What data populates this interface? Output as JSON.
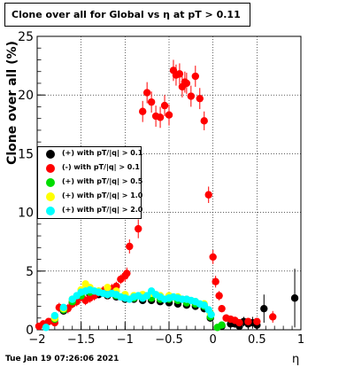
{
  "chart_data": {
    "type": "scatter",
    "title": "Clone  over all for Global vs   η at pT > 0.11",
    "xlabel": "η",
    "ylabel": "Clone  over all (%)",
    "xlim": [
      -2,
      1
    ],
    "ylim": [
      0,
      25
    ],
    "xticks": [
      -2,
      -1.5,
      -1,
      -0.5,
      0,
      0.5,
      1
    ],
    "xtick_labels": [
      "−2",
      "−1.5",
      "−1",
      "−0.5",
      "0",
      "0.5",
      "1"
    ],
    "yticks": [
      0,
      5,
      10,
      15,
      20,
      25
    ],
    "ytick_labels": [
      "0",
      "5",
      "10",
      "15",
      "20",
      "25"
    ],
    "grid": true,
    "legend_position": "middle-left",
    "series": [
      {
        "name": "(+) with pT/|q| > 0.1",
        "color": "#000000",
        "x": [
          -1.8,
          -1.7,
          -1.6,
          -1.5,
          -1.4,
          -1.3,
          -1.2,
          -1.1,
          -1.0,
          -0.9,
          -0.8,
          -0.7,
          -0.6,
          -0.5,
          -0.4,
          -0.3,
          -0.2,
          -0.1,
          -0.03,
          0.1,
          0.2,
          0.25,
          0.3,
          0.35,
          0.4,
          0.45,
          0.5,
          0.58,
          0.93
        ],
        "y": [
          1.0,
          1.6,
          2.3,
          2.8,
          3.0,
          3.0,
          2.9,
          2.8,
          2.6,
          2.6,
          2.5,
          2.5,
          2.4,
          2.3,
          2.2,
          2.1,
          2.0,
          1.8,
          1.0,
          0.3,
          0.5,
          0.5,
          0.3,
          0.7,
          0.5,
          0.6,
          0.4,
          1.8,
          2.7
        ],
        "err": [
          0.2,
          0.2,
          0.2,
          0.2,
          0.2,
          0.2,
          0.2,
          0.2,
          0.2,
          0.2,
          0.2,
          0.2,
          0.2,
          0.2,
          0.2,
          0.2,
          0.2,
          0.3,
          0.3,
          0.2,
          0.3,
          0.3,
          0.3,
          0.4,
          0.4,
          0.5,
          0.4,
          1.2,
          2.5
        ]
      },
      {
        "name": "(-) with pT/|q| > 0.1",
        "color": "#ff0000",
        "x": [
          -1.98,
          -1.93,
          -1.87,
          -1.8,
          -1.75,
          -1.65,
          -1.6,
          -1.55,
          -1.5,
          -1.45,
          -1.4,
          -1.35,
          -1.3,
          -1.25,
          -1.2,
          -1.15,
          -1.1,
          -1.05,
          -1.0,
          -0.98,
          -0.95,
          -0.85,
          -0.8,
          -0.75,
          -0.7,
          -0.65,
          -0.6,
          -0.55,
          -0.5,
          -0.45,
          -0.42,
          -0.38,
          -0.35,
          -0.32,
          -0.3,
          -0.25,
          -0.2,
          -0.15,
          -0.1,
          -0.05,
          0.0,
          0.03,
          0.07,
          0.1,
          0.15,
          0.2,
          0.25,
          0.3,
          0.4,
          0.5,
          0.68
        ],
        "y": [
          0.3,
          0.5,
          0.7,
          0.6,
          1.9,
          1.8,
          2.2,
          2.4,
          2.8,
          2.5,
          2.7,
          2.9,
          3.2,
          3.3,
          3.0,
          3.5,
          3.7,
          4.3,
          4.6,
          4.8,
          7.1,
          8.6,
          18.6,
          20.2,
          19.4,
          18.2,
          18.1,
          19.1,
          18.3,
          22.1,
          21.7,
          21.8,
          20.7,
          21.1,
          21.0,
          19.9,
          21.6,
          19.7,
          17.8,
          11.5,
          6.2,
          4.1,
          2.9,
          1.8,
          1.0,
          0.9,
          0.8,
          0.6,
          0.7,
          0.7,
          1.1
        ],
        "err": [
          0.3,
          0.3,
          0.3,
          0.3,
          0.4,
          0.4,
          0.4,
          0.4,
          0.4,
          0.4,
          0.4,
          0.4,
          0.4,
          0.4,
          0.4,
          0.4,
          0.4,
          0.4,
          0.5,
          0.5,
          0.6,
          0.8,
          0.9,
          0.9,
          0.9,
          0.9,
          0.9,
          0.9,
          0.9,
          0.9,
          0.9,
          0.9,
          0.9,
          0.9,
          0.9,
          0.9,
          0.9,
          0.9,
          0.8,
          0.7,
          0.6,
          0.5,
          0.4,
          0.3,
          0.3,
          0.3,
          0.3,
          0.3,
          0.3,
          0.3,
          0.5
        ]
      },
      {
        "name": "(+) with pT/|q| > 0.5",
        "color": "#00dd00",
        "x": [
          -1.8,
          -1.7,
          -1.6,
          -1.5,
          -1.4,
          -1.3,
          -1.2,
          -1.1,
          -1.0,
          -0.9,
          -0.8,
          -0.7,
          -0.6,
          -0.5,
          -0.4,
          -0.3,
          -0.2,
          -0.1,
          -0.03,
          0.05,
          0.1
        ],
        "y": [
          0.9,
          1.7,
          2.4,
          2.9,
          3.2,
          3.2,
          3.0,
          2.9,
          2.7,
          2.7,
          2.7,
          2.7,
          2.6,
          2.6,
          2.5,
          2.3,
          2.2,
          2.0,
          1.1,
          0.2,
          0.4
        ],
        "err": [
          0.2,
          0.2,
          0.2,
          0.2,
          0.2,
          0.2,
          0.2,
          0.2,
          0.2,
          0.2,
          0.2,
          0.2,
          0.2,
          0.2,
          0.2,
          0.2,
          0.2,
          0.2,
          0.2,
          0.2,
          0.2
        ]
      },
      {
        "name": "(+) with pT/|q| > 1.0",
        "color": "#ffff00",
        "x": [
          -1.8,
          -1.7,
          -1.6,
          -1.5,
          -1.45,
          -1.4,
          -1.3,
          -1.2,
          -1.1,
          -1.0,
          -0.9,
          -0.8,
          -0.7,
          -0.6,
          -0.5,
          -0.4,
          -0.3,
          -0.2,
          -0.1,
          -0.03
        ],
        "y": [
          1.0,
          1.8,
          2.6,
          3.4,
          3.9,
          3.6,
          3.3,
          3.6,
          3.3,
          3.0,
          2.9,
          3.0,
          3.1,
          2.9,
          2.9,
          2.8,
          2.6,
          2.4,
          2.2,
          1.4
        ],
        "err": [
          0.2,
          0.2,
          0.2,
          0.2,
          0.2,
          0.2,
          0.2,
          0.2,
          0.2,
          0.2,
          0.2,
          0.2,
          0.2,
          0.2,
          0.2,
          0.2,
          0.2,
          0.2,
          0.2,
          0.2
        ]
      },
      {
        "name": "(+) with pT/|q| > 2.0",
        "color": "#00ffff",
        "x": [
          -1.9,
          -1.8,
          -1.7,
          -1.6,
          -1.55,
          -1.5,
          -1.45,
          -1.4,
          -1.35,
          -1.3,
          -1.25,
          -1.2,
          -1.15,
          -1.1,
          -1.05,
          -1.0,
          -0.95,
          -0.9,
          -0.85,
          -0.8,
          -0.75,
          -0.7,
          -0.65,
          -0.6,
          -0.55,
          -0.5,
          -0.45,
          -0.4,
          -0.35,
          -0.3,
          -0.25,
          -0.2,
          -0.15,
          -0.1,
          -0.05,
          -0.02
        ],
        "y": [
          0.2,
          1.2,
          1.9,
          2.6,
          2.9,
          3.2,
          3.3,
          3.4,
          3.3,
          3.2,
          3.1,
          3.0,
          3.1,
          3.0,
          2.8,
          2.7,
          2.6,
          2.8,
          2.9,
          2.7,
          2.9,
          3.3,
          3.0,
          2.8,
          2.6,
          2.7,
          2.8,
          2.7,
          2.6,
          2.6,
          2.5,
          2.4,
          2.2,
          2.1,
          1.7,
          1.3
        ],
        "err": [
          0.2,
          0.2,
          0.2,
          0.2,
          0.2,
          0.2,
          0.2,
          0.2,
          0.2,
          0.2,
          0.2,
          0.2,
          0.2,
          0.2,
          0.2,
          0.2,
          0.2,
          0.2,
          0.2,
          0.2,
          0.2,
          0.2,
          0.2,
          0.2,
          0.2,
          0.2,
          0.2,
          0.2,
          0.2,
          0.2,
          0.2,
          0.2,
          0.2,
          0.2,
          0.2,
          0.2
        ]
      }
    ]
  },
  "legend": {
    "entries": [
      {
        "label": "(+) with pT/|q| > 0.1",
        "color": "#000000"
      },
      {
        "label": "(-) with pT/|q| > 0.1",
        "color": "#ff0000"
      },
      {
        "label": "(+) with pT/|q| > 0.5",
        "color": "#00dd00"
      },
      {
        "label": "(+) with pT/|q| > 1.0",
        "color": "#ffff00"
      },
      {
        "label": "(+) with pT/|q| > 2.0",
        "color": "#00ffff"
      }
    ]
  },
  "footer": {
    "timestamp": "Tue Jan 19 07:26:06 2021"
  }
}
